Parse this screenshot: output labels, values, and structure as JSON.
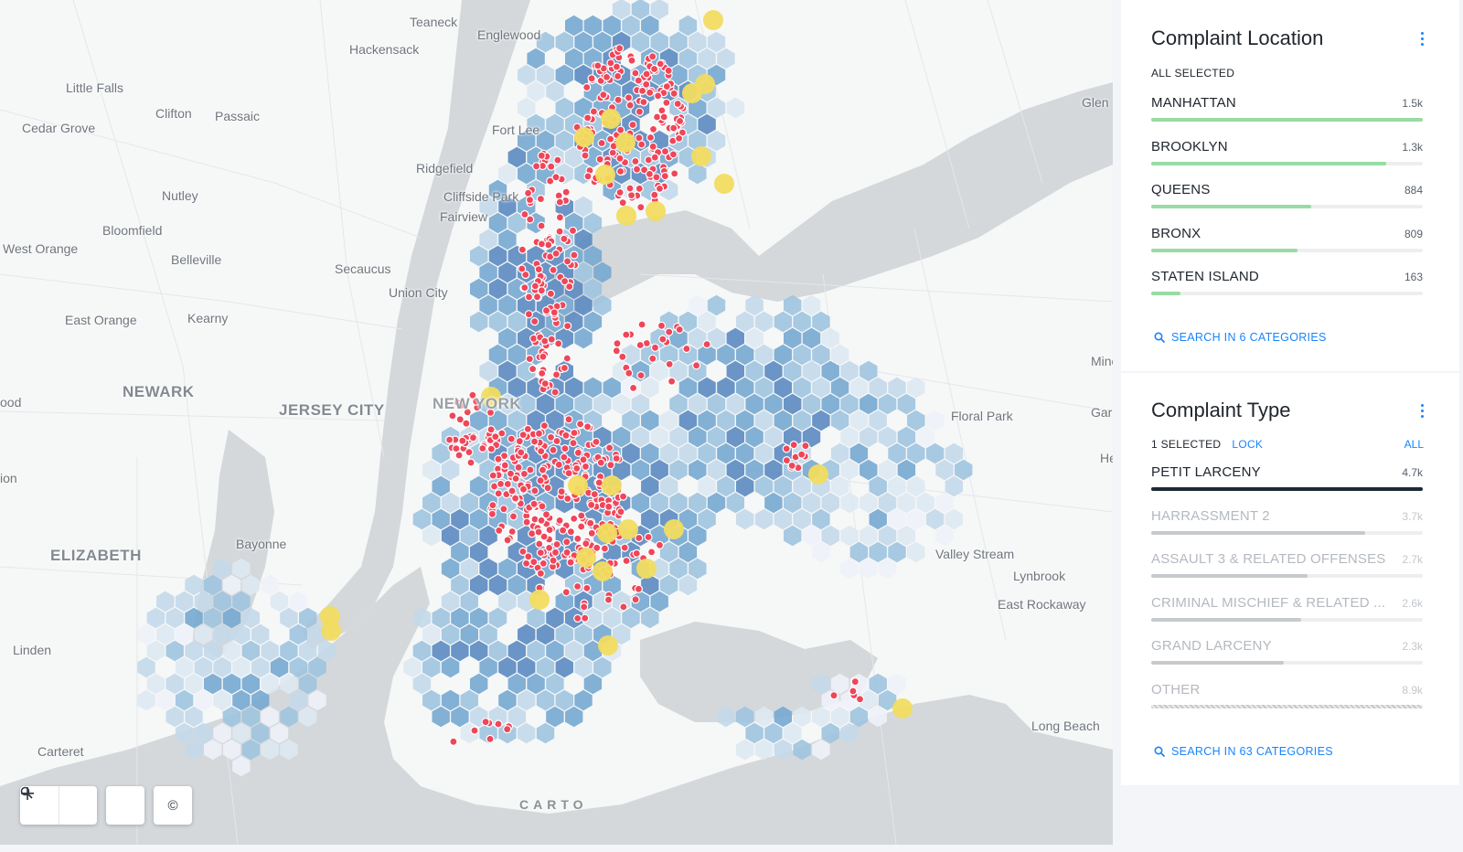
{
  "map": {
    "places": [
      "Teaneck",
      "Englewood",
      "Hackensack",
      "Little Falls",
      "Clifton",
      "Passaic",
      "Cedar Grove",
      "Fort Lee",
      "Ridgefield",
      "Nutley",
      "Cliffside Park",
      "Fairview",
      "Bloomfield",
      "West Orange",
      "Belleville",
      "Secaucus",
      "Union City",
      "East Orange",
      "Kearny",
      "NEWARK",
      "JERSEY CITY",
      "NEW YORK",
      "ELIZABETH",
      "Bayonne",
      "Linden",
      "Carteret",
      "Glen",
      "Mineo",
      "Garder",
      "He",
      "Floral Park",
      "Valley Stream",
      "Lynbrook",
      "East Rockaway",
      "Long Beach",
      "ood",
      "ion"
    ],
    "attribution": "CARTO",
    "colors": {
      "hex_scale": [
        "#eef1f7",
        "#dde8f1",
        "#c3d9ea",
        "#a0c4e0",
        "#78a9d1",
        "#5d8cc1"
      ],
      "point": "#ef4659",
      "cluster": "#f1dc60"
    }
  },
  "controls": {
    "zoom_out_icon": "minus-icon",
    "zoom_in_icon": "plus-icon",
    "search_icon": "search-icon",
    "attribution_symbol": "©"
  },
  "location_widget": {
    "title": "Complaint Location",
    "status": "ALL SELECTED",
    "bar_color": "#98dba3",
    "categories": [
      {
        "label": "MANHATTAN",
        "count": "1.5k",
        "value": 1500
      },
      {
        "label": "BROOKLYN",
        "count": "1.3k",
        "value": 1300
      },
      {
        "label": "QUEENS",
        "count": "884",
        "value": 884
      },
      {
        "label": "BRONX",
        "count": "809",
        "value": 809
      },
      {
        "label": "STATEN ISLAND",
        "count": "163",
        "value": 163
      }
    ],
    "search": "SEARCH IN 6 CATEGORIES"
  },
  "type_widget": {
    "title": "Complaint Type",
    "status": "1 SELECTED",
    "lock": "LOCK",
    "all": "ALL",
    "selected_color": "#1d2936",
    "unselected_color": "#c6cacd",
    "categories": [
      {
        "label": "PETIT LARCENY",
        "count": "4.7k",
        "value": 4700,
        "selected": true
      },
      {
        "label": "HARRASSMENT 2",
        "count": "3.7k",
        "value": 3700,
        "selected": false
      },
      {
        "label": "ASSAULT 3 & RELATED OFFENSES",
        "count": "2.7k",
        "value": 2700,
        "selected": false
      },
      {
        "label": "CRIMINAL MISCHIEF & RELATED ...",
        "count": "2.6k",
        "value": 2600,
        "selected": false
      },
      {
        "label": "GRAND LARCENY",
        "count": "2.3k",
        "value": 2300,
        "selected": false
      },
      {
        "label": "OTHER",
        "count": "8.9k",
        "value": 8900,
        "selected": false,
        "other": true
      }
    ],
    "search": "SEARCH IN 63 CATEGORIES"
  }
}
